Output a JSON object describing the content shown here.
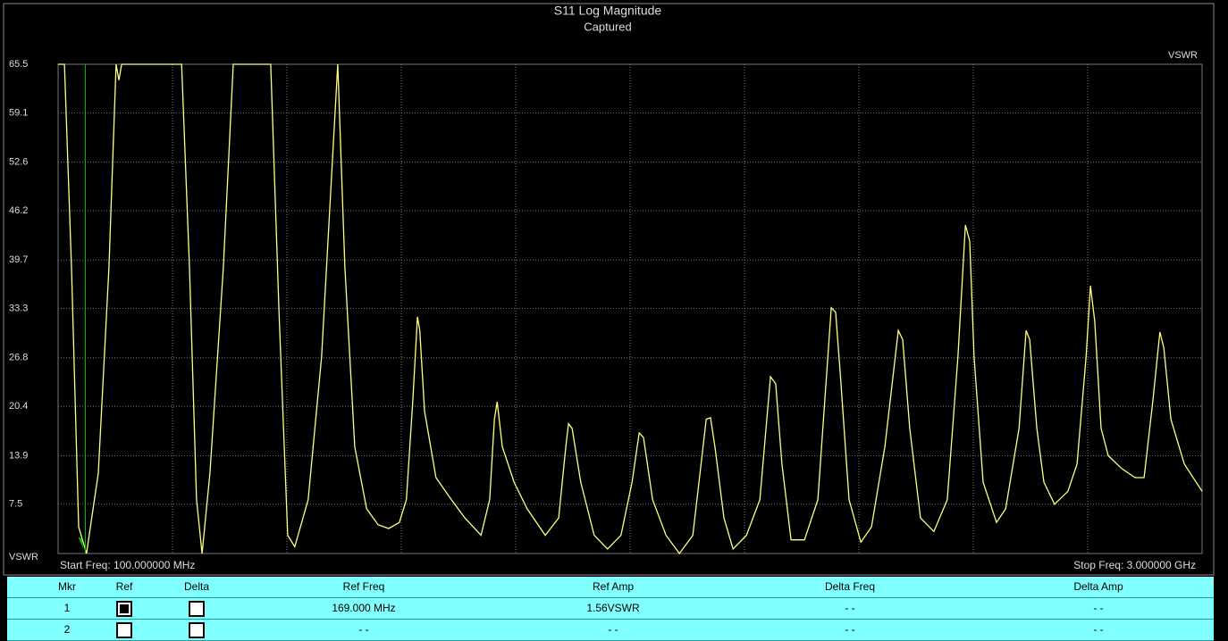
{
  "chart_data": {
    "type": "line",
    "title": "S11 Log Magnitude",
    "subtitle": "Captured",
    "y_label_top": "VSWR",
    "y_label_bottom": "VSWR",
    "start_label": "Start Freq: 100.000000 MHz",
    "stop_label": "Stop Freq: 3.000000 GHz",
    "xlim": [
      100,
      3000
    ],
    "xticks": [
      100,
      390,
      680,
      970,
      1260,
      1550,
      1840,
      2130,
      2420,
      2710,
      3000
    ],
    "ylim": [
      1,
      65.5
    ],
    "yticks": [
      7.5,
      13.9,
      20.4,
      26.8,
      33.3,
      39.7,
      46.2,
      52.6,
      59.1,
      65.5
    ],
    "grid": true,
    "markers": [
      {
        "x": 169,
        "y": 1.56,
        "color": "#00c000"
      }
    ],
    "series": [
      {
        "name": "S11",
        "color": "#ffff80",
        "x": [
          100,
          116,
          134,
          152,
          172,
          202,
          229,
          247,
          254,
          261,
          413,
          433,
          451,
          465,
          485,
          519,
          544,
          639,
          660,
          682,
          700,
          734,
          768,
          809,
          827,
          852,
          882,
          911,
          938,
          965,
          983,
          999,
          1011,
          1017,
          1029,
          1058,
          1097,
          1131,
          1172,
          1194,
          1206,
          1213,
          1226,
          1256,
          1289,
          1335,
          1369,
          1387,
          1394,
          1403,
          1425,
          1459,
          1493,
          1527,
          1555,
          1573,
          1584,
          1607,
          1641,
          1675,
          1709,
          1743,
          1754,
          1765,
          1788,
          1811,
          1845,
          1879,
          1906,
          1919,
          1935,
          1958,
          1992,
          2026,
          2060,
          2071,
          2083,
          2105,
          2135,
          2162,
          2196,
          2230,
          2241,
          2259,
          2286,
          2320,
          2354,
          2381,
          2400,
          2411,
          2422,
          2445,
          2479,
          2502,
          2536,
          2554,
          2563,
          2581,
          2599,
          2626,
          2660,
          2683,
          2706,
          2717,
          2728,
          2744,
          2762,
          2796,
          2830,
          2853,
          2875,
          2893,
          2903,
          2921,
          2955,
          3000
        ],
        "values": [
          65.5,
          65.5,
          38.7,
          4.5,
          1.0,
          11.6,
          38.7,
          65.5,
          63.4,
          65.5,
          65.5,
          38.7,
          8.1,
          1.0,
          11.6,
          38.7,
          65.5,
          65.5,
          32.8,
          3.4,
          1.9,
          8.1,
          26.9,
          65.5,
          38.7,
          15.1,
          6.9,
          4.8,
          4.3,
          5.1,
          8.1,
          21.0,
          32.2,
          30.4,
          19.8,
          11.0,
          8.1,
          5.7,
          3.4,
          8.1,
          18.7,
          21.0,
          15.1,
          10.4,
          6.9,
          3.4,
          5.7,
          15.1,
          18.1,
          17.5,
          10.4,
          3.4,
          1.6,
          3.4,
          10.4,
          16.9,
          16.3,
          8.1,
          3.4,
          1.0,
          3.4,
          18.7,
          18.9,
          15.1,
          5.7,
          1.6,
          3.4,
          8.1,
          24.3,
          23.4,
          12.8,
          2.8,
          2.8,
          8.1,
          33.4,
          32.8,
          24.5,
          8.1,
          2.5,
          4.5,
          15.1,
          30.4,
          29.2,
          17.5,
          5.7,
          3.9,
          8.1,
          26.9,
          44.3,
          42.2,
          26.9,
          10.4,
          5.1,
          6.9,
          17.5,
          30.4,
          29.2,
          17.5,
          10.4,
          7.5,
          9.2,
          12.8,
          26.9,
          36.3,
          31.6,
          17.5,
          13.9,
          12.2,
          11.0,
          11.0,
          21.0,
          30.2,
          28.1,
          18.7,
          12.8,
          9.2
        ]
      }
    ]
  },
  "table": {
    "headers": [
      "Mkr",
      "Ref",
      "Delta",
      "Ref Freq",
      "Ref Amp",
      "Delta Freq",
      "Delta Amp"
    ],
    "rows": [
      {
        "mkr": "1",
        "ref": true,
        "delta": false,
        "cells": [
          "169.000 MHz",
          "1.56VSWR",
          "- -",
          "- -"
        ]
      },
      {
        "mkr": "2",
        "ref": false,
        "delta": false,
        "cells": [
          "- -",
          "- -",
          "- -",
          "- -"
        ]
      }
    ]
  }
}
